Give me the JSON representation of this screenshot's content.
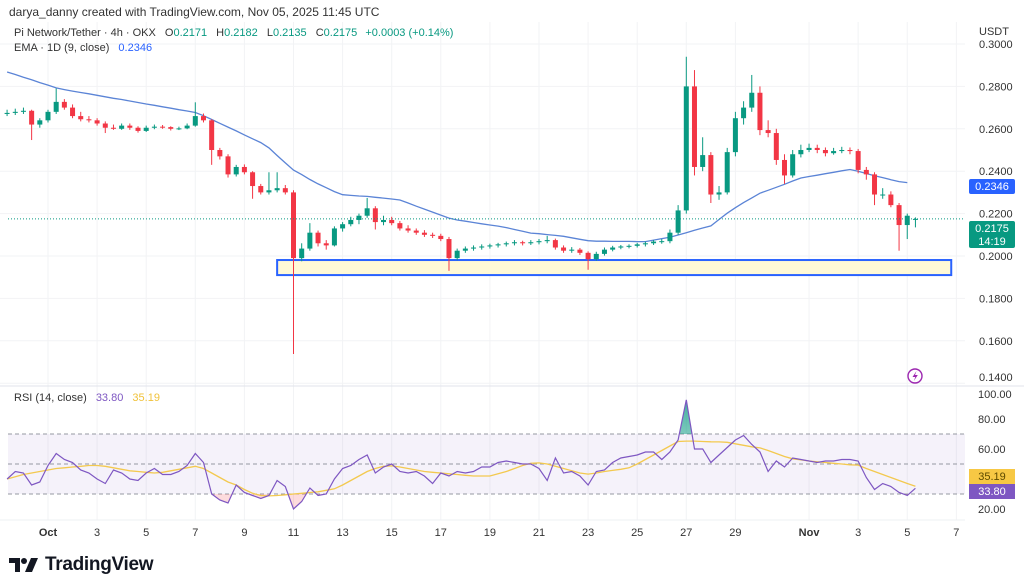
{
  "attribution": "darya_danny created with TradingView.com, Nov 05, 2025 11:45 UTC",
  "legend": {
    "symbol": "Pi Network/Tether · 4h · OKX",
    "open_label": "O",
    "open": "0.2171",
    "high_label": "H",
    "high": "0.2182",
    "low_label": "L",
    "low": "0.2135",
    "close_label": "C",
    "close": "0.2175",
    "change": "+0.0003 (+0.14%)",
    "ema_label": "EMA · 1D (9, close)",
    "ema_value": "0.2346"
  },
  "rsi_legend": {
    "label": "RSI (14, close)",
    "rsi_value": "33.80",
    "ma_value": "35.19"
  },
  "currency": "USDT",
  "logo_text": "TradingView",
  "colors": {
    "up": "#089981",
    "down": "#f23645",
    "ema": "#5b84d6",
    "rsi": "#7e57c2",
    "rsi_ma": "#f3c94f",
    "zone_border": "#2962ff",
    "zone_fill": "#fff9d6"
  },
  "chart_data": {
    "type": "candlestick",
    "title": "Pi Network/Tether · 4h · OKX",
    "price_ticks": [
      "0.1400",
      "0.1600",
      "0.1800",
      "0.2000",
      "0.2200",
      "0.2400",
      "0.2600",
      "0.2800",
      "0.3000"
    ],
    "ylim": [
      0.14,
      0.3
    ],
    "price_labels": {
      "ema": "0.2346",
      "last": "0.2175",
      "countdown": "14:19"
    },
    "x_ticks": [
      {
        "label": "Oct",
        "t": "10-01 00:00",
        "bold": true
      },
      {
        "label": "3",
        "t": "10-03 00:00"
      },
      {
        "label": "5",
        "t": "10-05 00:00"
      },
      {
        "label": "7",
        "t": "10-07 00:00"
      },
      {
        "label": "9",
        "t": "10-09 00:00"
      },
      {
        "label": "11",
        "t": "10-11 00:00"
      },
      {
        "label": "13",
        "t": "10-13 00:00"
      },
      {
        "label": "15",
        "t": "10-15 00:00"
      },
      {
        "label": "17",
        "t": "10-17 00:00"
      },
      {
        "label": "19",
        "t": "10-19 00:00"
      },
      {
        "label": "21",
        "t": "10-21 00:00"
      },
      {
        "label": "23",
        "t": "10-23 00:00"
      },
      {
        "label": "25",
        "t": "10-25 00:00"
      },
      {
        "label": "27",
        "t": "10-27 00:00"
      },
      {
        "label": "29",
        "t": "10-29 00:00"
      },
      {
        "label": "Nov",
        "t": "11-01 00:00",
        "bold": true
      },
      {
        "label": "3",
        "t": "11-03 00:00"
      },
      {
        "label": "5",
        "t": "11-05 00:00"
      },
      {
        "label": "7",
        "t": "11-07 00:00"
      }
    ],
    "candle_columns": [
      "time",
      "open",
      "high",
      "low",
      "close"
    ],
    "candles": [
      [
        "09-29 08:00",
        0.267,
        0.269,
        0.266,
        0.2675
      ],
      [
        "09-29 16:00",
        0.2675,
        0.2695,
        0.2665,
        0.268
      ],
      [
        "09-30 00:00",
        0.268,
        0.27,
        0.267,
        0.2685
      ],
      [
        "09-30 08:00",
        0.2685,
        0.269,
        0.2547,
        0.262
      ],
      [
        "09-30 16:00",
        0.262,
        0.265,
        0.2605,
        0.264
      ],
      [
        "10-01 00:00",
        0.264,
        0.269,
        0.263,
        0.268
      ],
      [
        "10-01 08:00",
        0.268,
        0.279,
        0.267,
        0.2727
      ],
      [
        "10-01 16:00",
        0.2727,
        0.274,
        0.269,
        0.27
      ],
      [
        "10-02 00:00",
        0.27,
        0.2715,
        0.265,
        0.266
      ],
      [
        "10-02 08:00",
        0.266,
        0.268,
        0.2635,
        0.2645
      ],
      [
        "10-02 16:00",
        0.2645,
        0.266,
        0.263,
        0.264
      ],
      [
        "10-03 00:00",
        0.264,
        0.265,
        0.2615,
        0.2625
      ],
      [
        "10-03 08:00",
        0.2625,
        0.2635,
        0.258,
        0.2605
      ],
      [
        "10-03 16:00",
        0.2605,
        0.262,
        0.2595,
        0.26
      ],
      [
        "10-04 00:00",
        0.26,
        0.2625,
        0.2595,
        0.2615
      ],
      [
        "10-04 08:00",
        0.2615,
        0.2625,
        0.2595,
        0.2605
      ],
      [
        "10-04 16:00",
        0.2605,
        0.2612,
        0.2582,
        0.259
      ],
      [
        "10-05 00:00",
        0.259,
        0.2615,
        0.2585,
        0.2605
      ],
      [
        "10-05 08:00",
        0.2605,
        0.262,
        0.2598,
        0.261
      ],
      [
        "10-05 16:00",
        0.261,
        0.2618,
        0.26,
        0.2608
      ],
      [
        "10-06 00:00",
        0.2608,
        0.2612,
        0.2592,
        0.26
      ],
      [
        "10-06 08:00",
        0.26,
        0.261,
        0.2594,
        0.2602
      ],
      [
        "10-06 16:00",
        0.2602,
        0.2625,
        0.2598,
        0.2615
      ],
      [
        "10-07 00:00",
        0.2615,
        0.2725,
        0.261,
        0.266
      ],
      [
        "10-07 08:00",
        0.266,
        0.2672,
        0.263,
        0.264
      ],
      [
        "10-07 16:00",
        0.264,
        0.2645,
        0.243,
        0.25
      ],
      [
        "10-08 00:00",
        0.25,
        0.251,
        0.2455,
        0.247
      ],
      [
        "10-08 08:00",
        0.247,
        0.248,
        0.237,
        0.2385
      ],
      [
        "10-08 16:00",
        0.2385,
        0.243,
        0.2375,
        0.242
      ],
      [
        "10-09 00:00",
        0.242,
        0.2432,
        0.2385,
        0.2395
      ],
      [
        "10-09 08:00",
        0.2395,
        0.24,
        0.227,
        0.233
      ],
      [
        "10-09 16:00",
        0.233,
        0.234,
        0.229,
        0.23
      ],
      [
        "10-10 00:00",
        0.23,
        0.2395,
        0.229,
        0.231
      ],
      [
        "10-10 08:00",
        0.231,
        0.2395,
        0.23,
        0.232
      ],
      [
        "10-10 16:00",
        0.232,
        0.2335,
        0.229,
        0.23
      ],
      [
        "10-11 00:00",
        0.23,
        0.231,
        0.1538,
        0.199
      ],
      [
        "10-11 08:00",
        0.199,
        0.206,
        0.1975,
        0.2035
      ],
      [
        "10-11 16:00",
        0.2035,
        0.2155,
        0.2025,
        0.211
      ],
      [
        "10-12 00:00",
        0.211,
        0.212,
        0.2045,
        0.206
      ],
      [
        "10-12 08:00",
        0.206,
        0.2075,
        0.203,
        0.205
      ],
      [
        "10-12 16:00",
        0.205,
        0.214,
        0.2045,
        0.213
      ],
      [
        "10-13 00:00",
        0.213,
        0.216,
        0.2115,
        0.215
      ],
      [
        "10-13 08:00",
        0.215,
        0.2185,
        0.214,
        0.217
      ],
      [
        "10-13 16:00",
        0.217,
        0.22,
        0.215,
        0.219
      ],
      [
        "10-14 00:00",
        0.219,
        0.2274,
        0.218,
        0.2225
      ],
      [
        "10-14 08:00",
        0.2225,
        0.2235,
        0.2125,
        0.216
      ],
      [
        "10-14 16:00",
        0.216,
        0.219,
        0.2145,
        0.217
      ],
      [
        "10-15 00:00",
        0.217,
        0.2185,
        0.2145,
        0.2155
      ],
      [
        "10-15 08:00",
        0.2155,
        0.2165,
        0.212,
        0.213
      ],
      [
        "10-15 16:00",
        0.213,
        0.2145,
        0.211,
        0.212
      ],
      [
        "10-16 00:00",
        0.212,
        0.213,
        0.21,
        0.211
      ],
      [
        "10-16 08:00",
        0.211,
        0.2122,
        0.209,
        0.21
      ],
      [
        "10-16 16:00",
        0.21,
        0.211,
        0.2085,
        0.2095
      ],
      [
        "10-17 00:00",
        0.2095,
        0.2105,
        0.207,
        0.208
      ],
      [
        "10-17 08:00",
        0.208,
        0.209,
        0.193,
        0.199
      ],
      [
        "10-17 16:00",
        0.199,
        0.2035,
        0.198,
        0.2025
      ],
      [
        "10-18 00:00",
        0.2025,
        0.2045,
        0.2015,
        0.2035
      ],
      [
        "10-18 08:00",
        0.2035,
        0.205,
        0.2025,
        0.204
      ],
      [
        "10-18 16:00",
        0.204,
        0.2055,
        0.203,
        0.2045
      ],
      [
        "10-19 00:00",
        0.2045,
        0.2058,
        0.2035,
        0.205
      ],
      [
        "10-19 08:00",
        0.205,
        0.2062,
        0.204,
        0.2055
      ],
      [
        "10-19 16:00",
        0.2055,
        0.2068,
        0.2045,
        0.206
      ],
      [
        "10-20 00:00",
        0.206,
        0.2075,
        0.205,
        0.2065
      ],
      [
        "10-20 08:00",
        0.2065,
        0.2072,
        0.205,
        0.206
      ],
      [
        "10-20 16:00",
        0.206,
        0.2075,
        0.2052,
        0.2065
      ],
      [
        "10-21 00:00",
        0.2065,
        0.208,
        0.2055,
        0.207
      ],
      [
        "10-21 08:00",
        0.207,
        0.2095,
        0.206,
        0.2075
      ],
      [
        "10-21 16:00",
        0.2075,
        0.2082,
        0.203,
        0.204
      ],
      [
        "10-22 00:00",
        0.204,
        0.205,
        0.2015,
        0.2025
      ],
      [
        "10-22 08:00",
        0.2025,
        0.2042,
        0.2015,
        0.203
      ],
      [
        "10-22 16:00",
        0.203,
        0.2038,
        0.2005,
        0.2015
      ],
      [
        "10-23 00:00",
        0.2015,
        0.2022,
        0.1935,
        0.1985
      ],
      [
        "10-23 08:00",
        0.1985,
        0.202,
        0.1978,
        0.201
      ],
      [
        "10-23 16:00",
        0.201,
        0.204,
        0.2002,
        0.203
      ],
      [
        "10-24 00:00",
        0.203,
        0.2048,
        0.2022,
        0.204
      ],
      [
        "10-24 08:00",
        0.204,
        0.2052,
        0.2032,
        0.2045
      ],
      [
        "10-24 16:00",
        0.2045,
        0.2055,
        0.2036,
        0.2048
      ],
      [
        "10-25 00:00",
        0.2048,
        0.2062,
        0.204,
        0.2055
      ],
      [
        "10-25 08:00",
        0.2055,
        0.2068,
        0.2045,
        0.206
      ],
      [
        "10-25 16:00",
        0.206,
        0.2075,
        0.2052,
        0.2068
      ],
      [
        "10-26 00:00",
        0.2068,
        0.208,
        0.2058,
        0.207
      ],
      [
        "10-26 08:00",
        0.207,
        0.2125,
        0.206,
        0.211
      ],
      [
        "10-26 16:00",
        0.211,
        0.224,
        0.21,
        0.2215
      ],
      [
        "10-27 00:00",
        0.2215,
        0.294,
        0.22,
        0.28
      ],
      [
        "10-27 08:00",
        0.28,
        0.2877,
        0.238,
        0.242
      ],
      [
        "10-27 16:00",
        0.242,
        0.256,
        0.24,
        0.2476
      ],
      [
        "10-28 00:00",
        0.2476,
        0.249,
        0.225,
        0.229
      ],
      [
        "10-28 08:00",
        0.229,
        0.233,
        0.2265,
        0.23
      ],
      [
        "10-28 16:00",
        0.23,
        0.251,
        0.229,
        0.249
      ],
      [
        "10-29 00:00",
        0.249,
        0.268,
        0.247,
        0.265
      ],
      [
        "10-29 08:00",
        0.265,
        0.273,
        0.262,
        0.27
      ],
      [
        "10-29 16:00",
        0.27,
        0.2854,
        0.268,
        0.277
      ],
      [
        "10-30 00:00",
        0.277,
        0.28,
        0.257,
        0.2594
      ],
      [
        "10-30 08:00",
        0.2594,
        0.264,
        0.256,
        0.258
      ],
      [
        "10-30 16:00",
        0.258,
        0.26,
        0.243,
        0.2453
      ],
      [
        "10-31 00:00",
        0.2453,
        0.248,
        0.234,
        0.238
      ],
      [
        "10-31 08:00",
        0.238,
        0.25,
        0.237,
        0.248
      ],
      [
        "10-31 16:00",
        0.248,
        0.2525,
        0.2465,
        0.25
      ],
      [
        "11-01 00:00",
        0.25,
        0.253,
        0.249,
        0.251
      ],
      [
        "11-01 08:00",
        0.251,
        0.2525,
        0.2485,
        0.25
      ],
      [
        "11-01 16:00",
        0.25,
        0.2512,
        0.247,
        0.2485
      ],
      [
        "11-02 00:00",
        0.2485,
        0.251,
        0.2478,
        0.2495
      ],
      [
        "11-02 08:00",
        0.2495,
        0.2515,
        0.2485,
        0.25
      ],
      [
        "11-02 16:00",
        0.25,
        0.2512,
        0.248,
        0.2495
      ],
      [
        "11-03 00:00",
        0.2495,
        0.2505,
        0.239,
        0.2406
      ],
      [
        "11-03 08:00",
        0.2406,
        0.242,
        0.236,
        0.2385
      ],
      [
        "11-03 16:00",
        0.2385,
        0.2395,
        0.224,
        0.229
      ],
      [
        "11-04 00:00",
        0.229,
        0.232,
        0.227,
        0.229
      ],
      [
        "11-04 08:00",
        0.229,
        0.2305,
        0.223,
        0.224
      ],
      [
        "11-04 16:00",
        0.224,
        0.225,
        0.2025,
        0.2146
      ],
      [
        "11-05 00:00",
        0.2146,
        0.22,
        0.208,
        0.219
      ],
      [
        "11-05 08:00",
        0.2171,
        0.2182,
        0.2135,
        0.2175
      ]
    ],
    "ema": [
      0.2868,
      0.2856,
      0.2843,
      0.2831,
      0.2818,
      0.2806,
      0.2793,
      0.2785,
      0.2778,
      0.2771,
      0.2765,
      0.2758,
      0.2751,
      0.2744,
      0.2738,
      0.2731,
      0.2724,
      0.2717,
      0.2711,
      0.2704,
      0.2697,
      0.269,
      0.2684,
      0.2677,
      0.2662,
      0.2644,
      0.2626,
      0.2608,
      0.259,
      0.2571,
      0.2553,
      0.2535,
      0.251,
      0.2474,
      0.2439,
      0.2405,
      0.2384,
      0.2361,
      0.234,
      0.2322,
      0.2304,
      0.2289,
      0.2286,
      0.2283,
      0.2281,
      0.2277,
      0.2273,
      0.2269,
      0.2264,
      0.225,
      0.2235,
      0.2221,
      0.2207,
      0.2193,
      0.2179,
      0.217,
      0.2164,
      0.2158,
      0.2152,
      0.2146,
      0.2141,
      0.2134,
      0.2125,
      0.2117,
      0.2108,
      0.2105,
      0.2101,
      0.2097,
      0.2093,
      0.2086,
      0.2079,
      0.2072,
      0.207,
      0.207,
      0.2069,
      0.2069,
      0.2069,
      0.2068,
      0.2068,
      0.2075,
      0.2082,
      0.2088,
      0.2099,
      0.211,
      0.2121,
      0.2132,
      0.2142,
      0.2172,
      0.2202,
      0.2228,
      0.2252,
      0.2274,
      0.2296,
      0.231,
      0.2324,
      0.2338,
      0.2354,
      0.2368,
      0.2375,
      0.2381,
      0.2388,
      0.2395,
      0.2402,
      0.2408,
      0.24,
      0.2389,
      0.2379,
      0.237,
      0.236,
      0.2351,
      0.2346,
      null
    ],
    "zone": {
      "from": "10-10 08:00",
      "to": "11-06 19:00",
      "top": 0.1981,
      "bottom": 0.191
    },
    "rsi_ticks": [
      "20.00",
      "60.00",
      "80.00",
      "100.00"
    ],
    "rsi_levels": [
      70,
      50,
      30
    ],
    "rsi": [
      40,
      45,
      44,
      36,
      38,
      49,
      57,
      53,
      51,
      46,
      44,
      40,
      37,
      46,
      44,
      40,
      39,
      44,
      47,
      43,
      43,
      45,
      49,
      57,
      51,
      30,
      26,
      24,
      36,
      31,
      29,
      27,
      29,
      39,
      35,
      20,
      25,
      34,
      29,
      30,
      40,
      47,
      49,
      53,
      56,
      44,
      48,
      50,
      45,
      44,
      45,
      42,
      37,
      44,
      42,
      45,
      44,
      45,
      48,
      48,
      51,
      52,
      51,
      50,
      50,
      47,
      39,
      54,
      44,
      45,
      42,
      36,
      45,
      46,
      51,
      54,
      55,
      56,
      58,
      58,
      53,
      58,
      66,
      92.7,
      60,
      60,
      51,
      56,
      61,
      66,
      69,
      63,
      58,
      45,
      52,
      48,
      54,
      53,
      52,
      51,
      52,
      52,
      53,
      53,
      52,
      41,
      33,
      37,
      35,
      31,
      29,
      33.8
    ],
    "rsi_ma": [
      40,
      41.5,
      43,
      44,
      45,
      46,
      47,
      47.5,
      48,
      48.5,
      49,
      49,
      48.5,
      47.5,
      46.5,
      45.5,
      45,
      44.5,
      44,
      44.5,
      45.5,
      46.5,
      47.5,
      48.5,
      47,
      44,
      41,
      38,
      36,
      33,
      30.5,
      29,
      28.7,
      29,
      29.5,
      30,
      30.5,
      31,
      31.5,
      32.5,
      33.5,
      36,
      39,
      42,
      45,
      47,
      48.5,
      48.7,
      48,
      47,
      46,
      45,
      44.5,
      44,
      43.5,
      43,
      42.5,
      42,
      42,
      42,
      43.5,
      45,
      47,
      49,
      50.5,
      50.7,
      50,
      48.5,
      47,
      45.5,
      44,
      43.3,
      44,
      45,
      45.7,
      46.5,
      47.5,
      50,
      53,
      56,
      59,
      62,
      65,
      65.3,
      65.3,
      65,
      64.8,
      64.7,
      64.5,
      63.5,
      62.5,
      61.5,
      60.7,
      59,
      57,
      55,
      53.5,
      52.7,
      52,
      51.5,
      51,
      50.5,
      50,
      49.5,
      49.3,
      47,
      45,
      43,
      41,
      39,
      37,
      35.19
    ]
  }
}
